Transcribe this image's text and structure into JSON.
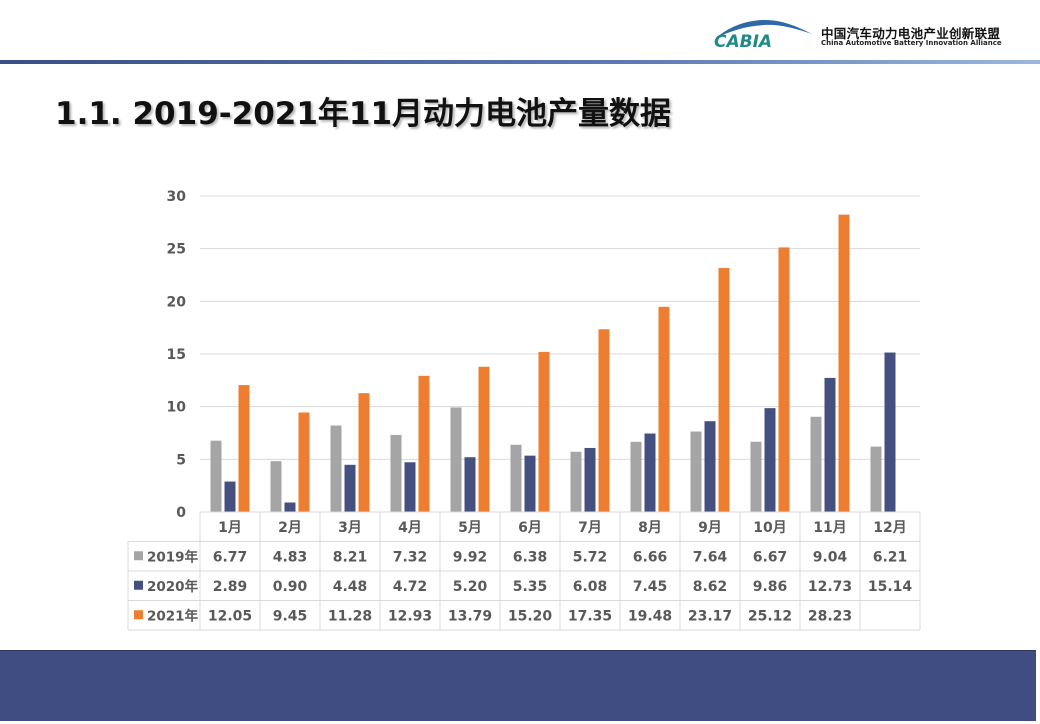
{
  "header": {
    "logo_text": "CABIA",
    "org_name_cn": "中国汽车动力电池产业创新联盟",
    "org_name_en": "China Automotive Battery Innovation Alliance"
  },
  "page_title": "1.1.  2019-2021年11月动力电池产量数据",
  "colors": {
    "series_2019": "#a5a5a5",
    "series_2020": "#44507f",
    "series_2021": "#ed7d31",
    "footer": "#3f4d82",
    "header_line": "#3a4f86",
    "grid": "#d9d9d9",
    "text": "#595959"
  },
  "chart_data": {
    "type": "bar",
    "title": "",
    "xlabel": "",
    "ylabel": "",
    "ylim": [
      0,
      30
    ],
    "yticks": [
      0,
      5,
      10,
      15,
      20,
      25,
      30
    ],
    "grid": true,
    "legend": "embedded data table below chart",
    "categories": [
      "1月",
      "2月",
      "3月",
      "4月",
      "5月",
      "6月",
      "7月",
      "8月",
      "9月",
      "10月",
      "11月",
      "12月"
    ],
    "series": [
      {
        "name": "2019年",
        "color": "#a5a5a5",
        "values": [
          6.77,
          4.83,
          8.21,
          7.32,
          9.92,
          6.38,
          5.72,
          6.66,
          7.64,
          6.67,
          9.04,
          6.21
        ]
      },
      {
        "name": "2020年",
        "color": "#44507f",
        "values": [
          2.89,
          0.9,
          4.48,
          4.72,
          5.2,
          5.35,
          6.08,
          7.45,
          8.62,
          9.86,
          12.73,
          15.14
        ]
      },
      {
        "name": "2021年",
        "color": "#ed7d31",
        "values": [
          12.05,
          9.45,
          11.28,
          12.93,
          13.79,
          15.2,
          17.35,
          19.48,
          23.17,
          25.12,
          28.23,
          null
        ]
      }
    ],
    "table_labels": {
      "2019年": [
        "6.77",
        "4.83",
        "8.21",
        "7.32",
        "9.92",
        "6.38",
        "5.72",
        "6.66",
        "7.64",
        "6.67",
        "9.04",
        "6.21"
      ],
      "2020年": [
        "2.89",
        "0.90",
        "4.48",
        "4.72",
        "5.20",
        "5.35",
        "6.08",
        "7.45",
        "8.62",
        "9.86",
        "12.73",
        "15.14"
      ],
      "2021年": [
        "12.05",
        "9.45",
        "11.28",
        "12.93",
        "13.79",
        "15.20",
        "17.35",
        "19.48",
        "23.17",
        "25.12",
        "28.23",
        ""
      ]
    }
  }
}
